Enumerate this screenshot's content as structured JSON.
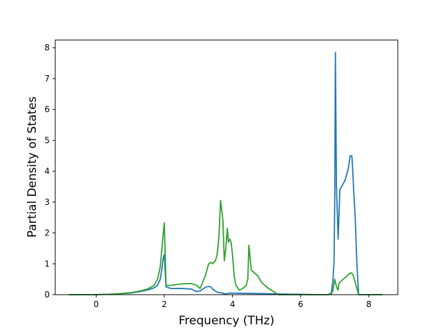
{
  "chart_data": {
    "type": "line",
    "title": "",
    "xlabel": "Frequency (THz)",
    "ylabel": "Partial Density of States",
    "xlim": [
      -1.2,
      8.85
    ],
    "ylim": [
      0,
      8.25
    ],
    "xticks": [
      0,
      2,
      4,
      6,
      8
    ],
    "xtick_labels": [
      "0",
      "2",
      "4",
      "6",
      "8"
    ],
    "yticks": [
      0,
      1,
      2,
      3,
      4,
      5,
      6,
      7,
      8
    ],
    "ytick_labels": [
      "0",
      "1",
      "2",
      "3",
      "4",
      "5",
      "6",
      "7",
      "8"
    ],
    "grid": false,
    "legend": "none",
    "series": [
      {
        "color": "#1f77b4",
        "x": [
          -0.8,
          0.0,
          0.5,
          1.0,
          1.3,
          1.5,
          1.7,
          1.8,
          1.88,
          1.93,
          1.97,
          2.0,
          2.05,
          2.2,
          2.5,
          2.8,
          2.95,
          3.05,
          3.15,
          3.25,
          3.35,
          3.45,
          3.55,
          3.7,
          3.8,
          3.9,
          4.0,
          4.5,
          5.0,
          5.5,
          6.0,
          6.5,
          6.8,
          6.9,
          6.95,
          6.98,
          7.0,
          7.02,
          7.05,
          7.08,
          7.1,
          7.15,
          7.2,
          7.3,
          7.4,
          7.45,
          7.5,
          7.52,
          7.55,
          7.6,
          7.65,
          7.7,
          8.0,
          8.4
        ],
        "y": [
          0.0,
          0.0,
          0.02,
          0.05,
          0.1,
          0.15,
          0.22,
          0.3,
          0.5,
          0.85,
          1.2,
          1.3,
          0.25,
          0.2,
          0.2,
          0.18,
          0.1,
          0.12,
          0.2,
          0.26,
          0.26,
          0.15,
          0.08,
          0.05,
          0.02,
          0.05,
          0.05,
          0.04,
          0.03,
          0.02,
          0.01,
          0.0,
          0.0,
          0.05,
          0.5,
          1.1,
          3.0,
          7.85,
          3.5,
          2.5,
          1.8,
          3.4,
          3.5,
          3.7,
          4.1,
          4.5,
          4.5,
          4.2,
          3.5,
          2.5,
          1.0,
          0.0,
          0.0,
          0.0
        ]
      },
      {
        "color": "#2ca02c",
        "x": [
          -0.8,
          0.0,
          0.5,
          1.0,
          1.3,
          1.5,
          1.7,
          1.8,
          1.88,
          1.93,
          1.97,
          2.0,
          2.05,
          2.2,
          2.5,
          2.8,
          2.95,
          3.05,
          3.2,
          3.3,
          3.37,
          3.42,
          3.5,
          3.55,
          3.6,
          3.65,
          3.72,
          3.76,
          3.8,
          3.85,
          3.88,
          3.92,
          3.96,
          4.0,
          4.05,
          4.1,
          4.2,
          4.3,
          4.4,
          4.45,
          4.48,
          4.5,
          4.55,
          4.65,
          4.75,
          4.85,
          5.0,
          5.2,
          5.35,
          5.5,
          6.0,
          6.5,
          6.8,
          6.9,
          6.95,
          7.0,
          7.03,
          7.07,
          7.1,
          7.12,
          7.15,
          7.25,
          7.35,
          7.45,
          7.5,
          7.55,
          7.6,
          7.65,
          7.7,
          8.0,
          8.4
        ],
        "y": [
          0.0,
          0.0,
          0.02,
          0.06,
          0.12,
          0.18,
          0.3,
          0.5,
          0.9,
          1.5,
          2.0,
          2.33,
          0.3,
          0.3,
          0.35,
          0.36,
          0.3,
          0.2,
          0.6,
          1.0,
          1.05,
          1.0,
          1.1,
          1.3,
          1.85,
          3.05,
          2.4,
          1.1,
          1.45,
          2.15,
          1.7,
          1.8,
          1.7,
          1.3,
          0.6,
          0.3,
          0.15,
          0.2,
          0.3,
          0.5,
          1.6,
          1.4,
          0.8,
          0.7,
          0.6,
          0.4,
          0.25,
          0.1,
          0.0,
          0.0,
          0.0,
          0.0,
          0.0,
          0.02,
          0.15,
          0.5,
          0.35,
          0.2,
          0.15,
          0.35,
          0.4,
          0.5,
          0.6,
          0.7,
          0.7,
          0.6,
          0.4,
          0.2,
          0.0,
          0.0,
          0.0
        ]
      }
    ]
  }
}
